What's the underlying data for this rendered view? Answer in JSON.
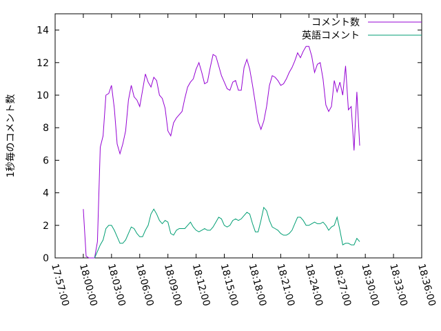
{
  "chart_data": {
    "type": "line",
    "title": "",
    "xlabel": "",
    "ylabel": "1秒毎のコメント数",
    "xlim": [
      "17:57:00",
      "18:36:00"
    ],
    "ylim": [
      0,
      15
    ],
    "x_tick_labels": [
      "17:57:00",
      "18:00:00",
      "18:03:00",
      "18:06:00",
      "18:09:00",
      "18:12:00",
      "18:15:00",
      "18:18:00",
      "18:21:00",
      "18:24:00",
      "18:27:00",
      "18:30:00",
      "18:33:00",
      "18:36:00"
    ],
    "y_ticks": [
      0,
      2,
      4,
      6,
      8,
      10,
      12,
      14
    ],
    "grid": false,
    "legend_position": "top-right",
    "series": [
      {
        "name": "コメント数",
        "color": "#9400d3",
        "points": [
          [
            "18:00:00",
            3.0
          ],
          [
            "18:00:18",
            0.1
          ],
          [
            "18:00:36",
            0.0
          ],
          [
            "18:00:54",
            0.0
          ],
          [
            "18:01:12",
            0.0
          ],
          [
            "18:01:30",
            1.0
          ],
          [
            "18:01:48",
            6.8
          ],
          [
            "18:02:06",
            7.5
          ],
          [
            "18:02:24",
            10.0
          ],
          [
            "18:02:42",
            10.1
          ],
          [
            "18:03:00",
            10.6
          ],
          [
            "18:03:18",
            9.2
          ],
          [
            "18:03:36",
            7.0
          ],
          [
            "18:03:54",
            6.4
          ],
          [
            "18:04:12",
            7.0
          ],
          [
            "18:04:30",
            7.8
          ],
          [
            "18:04:48",
            9.7
          ],
          [
            "18:05:06",
            10.6
          ],
          [
            "18:05:24",
            9.9
          ],
          [
            "18:05:42",
            9.7
          ],
          [
            "18:06:00",
            9.3
          ],
          [
            "18:06:18",
            10.3
          ],
          [
            "18:06:36",
            11.3
          ],
          [
            "18:06:54",
            10.8
          ],
          [
            "18:07:12",
            10.5
          ],
          [
            "18:07:30",
            11.1
          ],
          [
            "18:07:48",
            10.9
          ],
          [
            "18:08:06",
            10.0
          ],
          [
            "18:08:24",
            9.8
          ],
          [
            "18:08:42",
            9.2
          ],
          [
            "18:09:00",
            7.8
          ],
          [
            "18:09:18",
            7.5
          ],
          [
            "18:09:36",
            8.3
          ],
          [
            "18:09:54",
            8.6
          ],
          [
            "18:10:12",
            8.8
          ],
          [
            "18:10:30",
            9.0
          ],
          [
            "18:10:48",
            9.8
          ],
          [
            "18:11:06",
            10.5
          ],
          [
            "18:11:24",
            10.8
          ],
          [
            "18:11:42",
            11.0
          ],
          [
            "18:12:00",
            11.6
          ],
          [
            "18:12:18",
            12.0
          ],
          [
            "18:12:36",
            11.4
          ],
          [
            "18:12:54",
            10.7
          ],
          [
            "18:13:12",
            10.8
          ],
          [
            "18:13:30",
            11.7
          ],
          [
            "18:13:48",
            12.5
          ],
          [
            "18:14:06",
            12.4
          ],
          [
            "18:14:24",
            11.8
          ],
          [
            "18:14:42",
            11.2
          ],
          [
            "18:15:00",
            10.8
          ],
          [
            "18:15:18",
            10.4
          ],
          [
            "18:15:36",
            10.3
          ],
          [
            "18:15:54",
            10.8
          ],
          [
            "18:16:12",
            10.9
          ],
          [
            "18:16:30",
            10.3
          ],
          [
            "18:16:48",
            10.3
          ],
          [
            "18:17:06",
            11.7
          ],
          [
            "18:17:24",
            12.2
          ],
          [
            "18:17:42",
            11.6
          ],
          [
            "18:18:00",
            10.6
          ],
          [
            "18:18:18",
            9.5
          ],
          [
            "18:18:36",
            8.4
          ],
          [
            "18:18:54",
            7.9
          ],
          [
            "18:19:12",
            8.4
          ],
          [
            "18:19:30",
            9.3
          ],
          [
            "18:19:48",
            10.6
          ],
          [
            "18:20:06",
            11.2
          ],
          [
            "18:20:24",
            11.1
          ],
          [
            "18:20:42",
            10.9
          ],
          [
            "18:21:00",
            10.6
          ],
          [
            "18:21:18",
            10.7
          ],
          [
            "18:21:36",
            11.0
          ],
          [
            "18:21:54",
            11.4
          ],
          [
            "18:22:12",
            11.7
          ],
          [
            "18:22:30",
            12.1
          ],
          [
            "18:22:48",
            12.6
          ],
          [
            "18:23:06",
            12.3
          ],
          [
            "18:23:24",
            12.7
          ],
          [
            "18:23:42",
            13.0
          ],
          [
            "18:24:00",
            13.0
          ],
          [
            "18:24:18",
            12.4
          ],
          [
            "18:24:36",
            11.4
          ],
          [
            "18:24:54",
            11.9
          ],
          [
            "18:25:12",
            12.0
          ],
          [
            "18:25:30",
            11.0
          ],
          [
            "18:25:48",
            9.4
          ],
          [
            "18:26:06",
            9.0
          ],
          [
            "18:26:24",
            9.3
          ],
          [
            "18:26:42",
            10.9
          ],
          [
            "18:27:00",
            10.2
          ],
          [
            "18:27:18",
            10.8
          ],
          [
            "18:27:36",
            10.0
          ],
          [
            "18:27:54",
            11.8
          ],
          [
            "18:28:12",
            9.1
          ],
          [
            "18:28:30",
            9.3
          ],
          [
            "18:28:48",
            6.6
          ],
          [
            "18:29:06",
            10.2
          ],
          [
            "18:29:24",
            6.9
          ]
        ]
      },
      {
        "name": "英語コメント",
        "color": "#009e73",
        "points": [
          [
            "18:01:12",
            0.0
          ],
          [
            "18:01:30",
            0.4
          ],
          [
            "18:01:48",
            0.8
          ],
          [
            "18:02:06",
            1.1
          ],
          [
            "18:02:24",
            1.8
          ],
          [
            "18:02:42",
            2.0
          ],
          [
            "18:03:00",
            2.0
          ],
          [
            "18:03:18",
            1.7
          ],
          [
            "18:03:36",
            1.3
          ],
          [
            "18:03:54",
            0.9
          ],
          [
            "18:04:12",
            0.9
          ],
          [
            "18:04:30",
            1.1
          ],
          [
            "18:04:48",
            1.5
          ],
          [
            "18:05:06",
            1.9
          ],
          [
            "18:05:24",
            1.8
          ],
          [
            "18:05:42",
            1.5
          ],
          [
            "18:06:00",
            1.3
          ],
          [
            "18:06:18",
            1.3
          ],
          [
            "18:06:36",
            1.7
          ],
          [
            "18:06:54",
            2.0
          ],
          [
            "18:07:12",
            2.7
          ],
          [
            "18:07:30",
            3.0
          ],
          [
            "18:07:48",
            2.7
          ],
          [
            "18:08:06",
            2.3
          ],
          [
            "18:08:24",
            2.1
          ],
          [
            "18:08:42",
            2.3
          ],
          [
            "18:09:00",
            2.2
          ],
          [
            "18:09:18",
            1.5
          ],
          [
            "18:09:36",
            1.4
          ],
          [
            "18:09:54",
            1.7
          ],
          [
            "18:10:12",
            1.8
          ],
          [
            "18:10:30",
            1.8
          ],
          [
            "18:10:48",
            1.8
          ],
          [
            "18:11:06",
            2.0
          ],
          [
            "18:11:24",
            2.2
          ],
          [
            "18:11:42",
            1.9
          ],
          [
            "18:12:00",
            1.7
          ],
          [
            "18:12:18",
            1.6
          ],
          [
            "18:12:36",
            1.7
          ],
          [
            "18:12:54",
            1.8
          ],
          [
            "18:13:12",
            1.7
          ],
          [
            "18:13:30",
            1.7
          ],
          [
            "18:13:48",
            1.9
          ],
          [
            "18:14:06",
            2.2
          ],
          [
            "18:14:24",
            2.5
          ],
          [
            "18:14:42",
            2.4
          ],
          [
            "18:15:00",
            2.0
          ],
          [
            "18:15:18",
            1.9
          ],
          [
            "18:15:36",
            2.0
          ],
          [
            "18:15:54",
            2.3
          ],
          [
            "18:16:12",
            2.4
          ],
          [
            "18:16:30",
            2.3
          ],
          [
            "18:16:48",
            2.4
          ],
          [
            "18:17:06",
            2.6
          ],
          [
            "18:17:24",
            2.8
          ],
          [
            "18:17:42",
            2.7
          ],
          [
            "18:18:00",
            2.1
          ],
          [
            "18:18:18",
            1.6
          ],
          [
            "18:18:36",
            1.6
          ],
          [
            "18:18:54",
            2.3
          ],
          [
            "18:19:12",
            3.1
          ],
          [
            "18:19:30",
            2.9
          ],
          [
            "18:19:48",
            2.3
          ],
          [
            "18:20:06",
            1.9
          ],
          [
            "18:20:24",
            1.8
          ],
          [
            "18:20:42",
            1.7
          ],
          [
            "18:21:00",
            1.5
          ],
          [
            "18:21:18",
            1.4
          ],
          [
            "18:21:36",
            1.4
          ],
          [
            "18:21:54",
            1.5
          ],
          [
            "18:22:12",
            1.7
          ],
          [
            "18:22:30",
            2.1
          ],
          [
            "18:22:48",
            2.5
          ],
          [
            "18:23:06",
            2.5
          ],
          [
            "18:23:24",
            2.3
          ],
          [
            "18:23:42",
            2.0
          ],
          [
            "18:24:00",
            2.0
          ],
          [
            "18:24:18",
            2.1
          ],
          [
            "18:24:36",
            2.2
          ],
          [
            "18:24:54",
            2.1
          ],
          [
            "18:25:12",
            2.1
          ],
          [
            "18:25:30",
            2.2
          ],
          [
            "18:25:48",
            2.0
          ],
          [
            "18:26:06",
            1.7
          ],
          [
            "18:26:24",
            1.9
          ],
          [
            "18:26:42",
            2.0
          ],
          [
            "18:27:00",
            2.5
          ],
          [
            "18:27:18",
            1.7
          ],
          [
            "18:27:36",
            0.8
          ],
          [
            "18:27:54",
            0.9
          ],
          [
            "18:28:12",
            0.9
          ],
          [
            "18:28:30",
            0.8
          ],
          [
            "18:28:48",
            0.8
          ],
          [
            "18:29:06",
            1.2
          ],
          [
            "18:29:24",
            1.0
          ]
        ]
      }
    ]
  }
}
